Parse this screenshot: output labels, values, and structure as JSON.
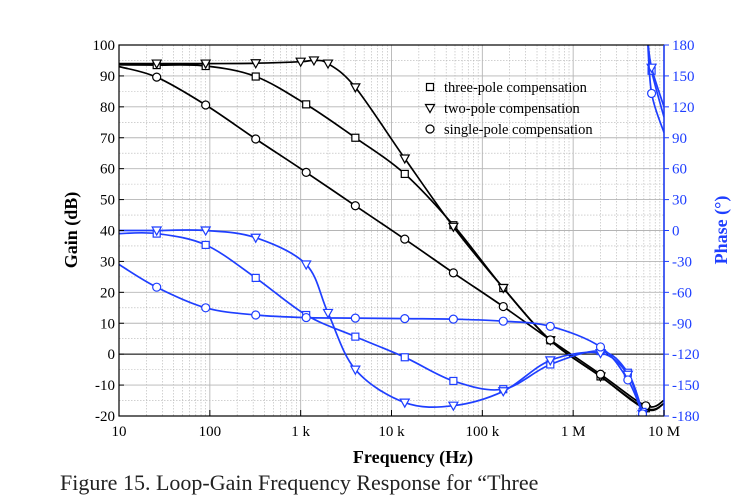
{
  "chart_data": {
    "type": "line",
    "xlabel": "Frequency (Hz)",
    "ylabel": "Gain (dB)",
    "y2label": "Phase (°)",
    "xscale": "log",
    "xlim": [
      10,
      10000000
    ],
    "ylim": [
      -20,
      100
    ],
    "y2lim": [
      -180,
      180
    ],
    "grid": true,
    "legend_position": "top-right",
    "colors": {
      "gain": "#000000",
      "phase": "#1f3fff",
      "grid": "#b5b5b5"
    },
    "x_ticks": [
      {
        "value": 10,
        "label": "10"
      },
      {
        "value": 100,
        "label": "100"
      },
      {
        "value": 1000,
        "label": "1 k"
      },
      {
        "value": 10000,
        "label": "10 k"
      },
      {
        "value": 100000,
        "label": "100 k"
      },
      {
        "value": 1000000,
        "label": "1 M"
      },
      {
        "value": 10000000,
        "label": "10 M"
      }
    ],
    "y_ticks": [
      "100",
      "90",
      "80",
      "70",
      "60",
      "50",
      "40",
      "30",
      "20",
      "10",
      "0",
      "-10",
      "-20"
    ],
    "y2_ticks": [
      "180",
      "150",
      "120",
      "90",
      "60",
      "30",
      "0",
      "-30",
      "-60",
      "-90",
      "-120",
      "-150",
      "-180"
    ],
    "legend": [
      {
        "marker": "square",
        "label": "three-pole compensation"
      },
      {
        "marker": "triangle",
        "label": "two-pole compensation"
      },
      {
        "marker": "circle",
        "label": "single-pole compensation"
      }
    ],
    "series": [
      {
        "axis": "gain",
        "marker": "square",
        "x": [
          10,
          26,
          90,
          320,
          1150,
          4000,
          14000,
          48000,
          170000,
          560000,
          2000000,
          6300000,
          10000000
        ],
        "y": [
          93.6,
          93.5,
          93.2,
          89.8,
          80.8,
          70.0,
          58.3,
          41.7,
          21.4,
          4.5,
          -7.2,
          -17.5,
          -16
        ]
      },
      {
        "axis": "gain",
        "marker": "triangle",
        "x": [
          10,
          26,
          90,
          320,
          1000,
          1400,
          2000,
          4000,
          14000,
          48000,
          170000,
          560000,
          2000000,
          6300000,
          10000000
        ],
        "y": [
          94,
          94,
          94,
          94.1,
          94.6,
          95,
          94,
          86.3,
          63.3,
          41.2,
          21.4,
          4.5,
          -7.2,
          -17.8,
          -16
        ]
      },
      {
        "axis": "gain",
        "marker": "circle",
        "x": [
          10,
          26,
          90,
          320,
          1150,
          4000,
          14000,
          48000,
          170000,
          560000,
          2000000,
          6300000,
          10000000
        ],
        "y": [
          93,
          89.6,
          80.6,
          69.6,
          58.8,
          48.0,
          37.2,
          26.3,
          15.4,
          4.6,
          -6.5,
          -16.7,
          -15
        ]
      },
      {
        "axis": "phase",
        "marker": "square",
        "x": [
          10,
          26,
          90,
          320,
          1150,
          4000,
          14000,
          48000,
          170000,
          560000,
          2000000,
          4000000,
          5800000
        ],
        "y": [
          -3,
          -3,
          -14,
          -46,
          -82,
          -103,
          -123,
          -146,
          -154,
          -130,
          -117,
          -138,
          -176
        ]
      },
      {
        "axis": "phase",
        "marker": "triangle",
        "x": [
          10,
          26,
          90,
          320,
          1150,
          2000,
          4000,
          14000,
          48000,
          170000,
          560000,
          2000000,
          4000000,
          5800000
        ],
        "y": [
          0,
          0,
          0,
          -7,
          -33,
          -80,
          -135,
          -167,
          -170,
          -156,
          -126,
          -119,
          -140,
          -178
        ]
      },
      {
        "axis": "phase",
        "marker": "circle",
        "x": [
          10,
          26,
          90,
          320,
          1150,
          4000,
          14000,
          48000,
          170000,
          560000,
          2000000,
          4000000,
          5800000
        ],
        "y": [
          -33,
          -55,
          -75,
          -82,
          -84.5,
          -85,
          -85.5,
          -86,
          -88,
          -93,
          -113,
          -145,
          -178
        ]
      },
      {
        "axis": "phase",
        "marker": "square",
        "x": [
          6600000,
          7300000,
          10000000
        ],
        "y": [
          185,
          155,
          110
        ]
      },
      {
        "axis": "phase",
        "marker": "triangle",
        "x": [
          6600000,
          7300000,
          10000000
        ],
        "y": [
          185,
          158,
          120
        ]
      },
      {
        "axis": "phase",
        "marker": "circle",
        "x": [
          6600000,
          7300000,
          10000000
        ],
        "y": [
          185,
          133,
          95
        ]
      }
    ]
  },
  "caption": "Figure 15. Loop-Gain Frequency Response for “Three"
}
